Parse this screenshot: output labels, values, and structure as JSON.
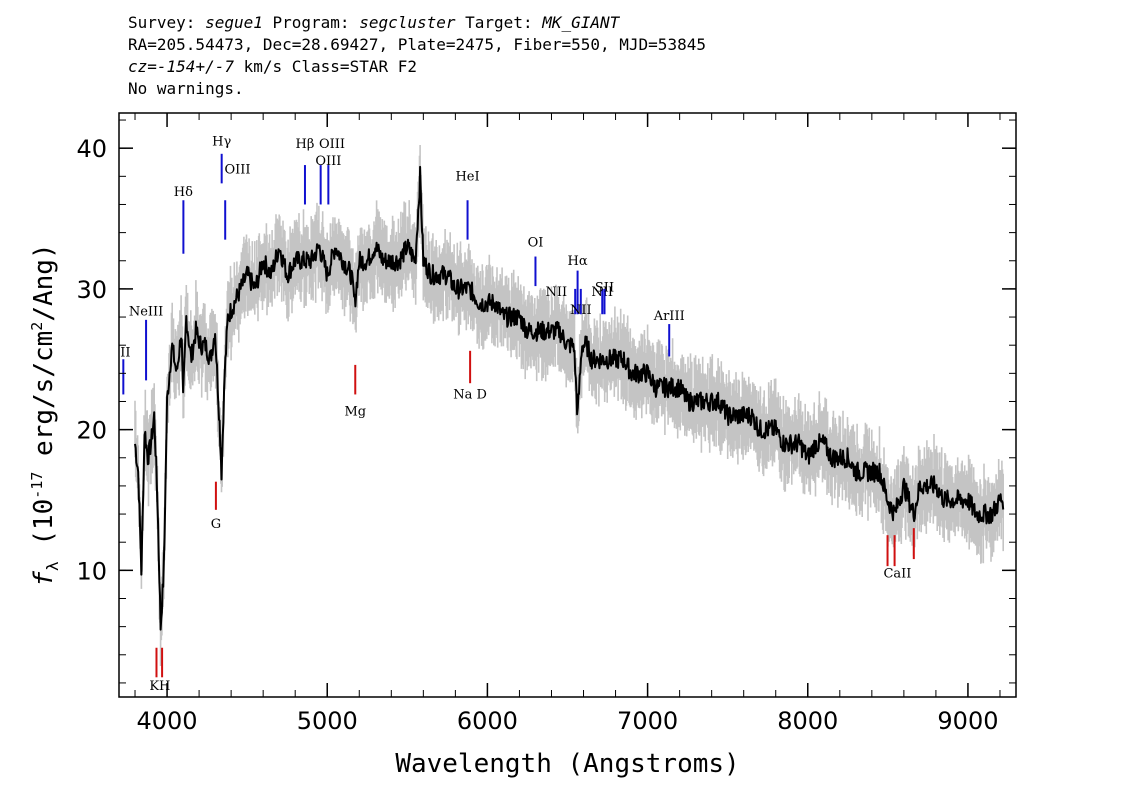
{
  "header": {
    "survey_label": "Survey: ",
    "survey": "segue1",
    "program_label": " Program: ",
    "program": "segcluster",
    "target_label": " Target: ",
    "target": "MK_GIANT",
    "line2": "RA=205.54473, Dec=28.69427, Plate=2475, Fiber=550, MJD=53845",
    "cz_label": "cz=",
    "cz": "-154+/-7",
    "cz_units": " km/s Class=STAR F2",
    "line4": "No warnings."
  },
  "chart_data": {
    "type": "line",
    "title": "",
    "xlabel": "Wavelength (Angstroms)",
    "ylabel_f": "f",
    "ylabel_sub": "λ",
    "ylabel_main": " (10",
    "ylabel_sup": "-17",
    "ylabel_rest": " erg/s/cm",
    "ylabel_sup2": "2",
    "ylabel_end": "/Ang)",
    "xlim": [
      3700,
      9300
    ],
    "ylim": [
      1,
      42.5
    ],
    "x_ticks": [
      4000,
      5000,
      6000,
      7000,
      8000,
      9000
    ],
    "x_tick_labels": [
      "4000",
      "5000",
      "6000",
      "7000",
      "8000",
      "9000"
    ],
    "y_ticks": [
      10,
      20,
      30,
      40
    ],
    "y_tick_labels": [
      "10",
      "20",
      "30",
      "40"
    ],
    "x_minor_step": 200,
    "y_minor_step": 2,
    "series": [
      {
        "color": "#000000",
        "x": [
          3800,
          3820,
          3840,
          3860,
          3880,
          3900,
          3920,
          3940,
          3960,
          3980,
          4000,
          4030,
          4060,
          4090,
          4100,
          4120,
          4150,
          4180,
          4210,
          4240,
          4270,
          4300,
          4330,
          4340,
          4360,
          4380,
          4420,
          4460,
          4500,
          4550,
          4600,
          4650,
          4700,
          4750,
          4800,
          4860,
          4900,
          4950,
          5000,
          5050,
          5100,
          5150,
          5172,
          5200,
          5250,
          5300,
          5350,
          5400,
          5450,
          5500,
          5550,
          5580,
          5600,
          5650,
          5700,
          5750,
          5800,
          5850,
          5890,
          5950,
          6000,
          6050,
          6100,
          6150,
          6200,
          6250,
          6300,
          6350,
          6400,
          6450,
          6500,
          6540,
          6563,
          6590,
          6620,
          6650,
          6700,
          6750,
          6800,
          6850,
          6900,
          6950,
          7000,
          7050,
          7100,
          7150,
          7200,
          7250,
          7300,
          7350,
          7400,
          7450,
          7500,
          7550,
          7600,
          7650,
          7700,
          7750,
          7800,
          7850,
          7900,
          7950,
          8000,
          8050,
          8100,
          8150,
          8200,
          8250,
          8300,
          8350,
          8400,
          8450,
          8498,
          8542,
          8600,
          8662,
          8700,
          8750,
          8800,
          8850,
          8900,
          8950,
          9000,
          9050,
          9100,
          9150,
          9200,
          9220
        ],
        "y": [
          19,
          17,
          10,
          20,
          18,
          19,
          21,
          15,
          6,
          10,
          22,
          26,
          24,
          27,
          22,
          28,
          25,
          27,
          26,
          26,
          25,
          27,
          20,
          17,
          24,
          28,
          29,
          30,
          31,
          30,
          32,
          31,
          33,
          31,
          32,
          32,
          32,
          33,
          31,
          33,
          32,
          31,
          29,
          32,
          32,
          33,
          32,
          32,
          32,
          33,
          32,
          38,
          32,
          31,
          31,
          31,
          30,
          30,
          30,
          29,
          29,
          29,
          28,
          28,
          28,
          27,
          27,
          27,
          27,
          27,
          26,
          26,
          21,
          26,
          26,
          25,
          25,
          25,
          25,
          25,
          24,
          24,
          24,
          23,
          23,
          23,
          23,
          22,
          22,
          22,
          22,
          22,
          21,
          21,
          21,
          21,
          20,
          20,
          20,
          19,
          19,
          19,
          18,
          19,
          19,
          18,
          18,
          18,
          17,
          17,
          17,
          17,
          15,
          14,
          16,
          14,
          16,
          16,
          16,
          15,
          15,
          15,
          15,
          14,
          14,
          14,
          15,
          15
        ]
      }
    ],
    "noise_band": {
      "color": "#c4c4c4",
      "half_width": 2.2
    },
    "lines_blue": [
      {
        "label": "II",
        "x": 3727,
        "y1": 22.5,
        "y2": 25,
        "lx": 3740,
        "ly": 25.2
      },
      {
        "label": "NeIII",
        "x": 3869,
        "y1": 23.5,
        "y2": 27.8,
        "lx": 3869,
        "ly": 28.1
      },
      {
        "label": "Hδ",
        "x": 4102,
        "y1": 32.5,
        "y2": 36.3,
        "lx": 4102,
        "ly": 36.6
      },
      {
        "label": "Hγ",
        "x": 4341,
        "y1": 37.5,
        "y2": 39.6,
        "lx": 4341,
        "ly": 40.2
      },
      {
        "label": "OIII",
        "x": 4363,
        "y1": 33.5,
        "y2": 36.3,
        "lx": 4440,
        "ly": 38.2
      },
      {
        "label": "Hβ",
        "x": 4861,
        "y1": 36,
        "y2": 38.8,
        "lx": 4861,
        "ly": 40.0
      },
      {
        "label": "OIII",
        "x": 4959,
        "y1": 36,
        "y2": 38.8,
        "lx": 5030,
        "ly": 40.0
      },
      {
        "label": "OIII",
        "x": 5007,
        "y1": 36,
        "y2": 38.8,
        "lx": 5007,
        "ly": 38.8
      },
      {
        "label": "HeI",
        "x": 5876,
        "y1": 33.5,
        "y2": 36.3,
        "lx": 5876,
        "ly": 37.7
      },
      {
        "label": "OI",
        "x": 6300,
        "y1": 30.2,
        "y2": 32.3,
        "lx": 6300,
        "ly": 33.0
      },
      {
        "label": "NII",
        "x": 6548,
        "y1": 28.2,
        "y2": 30.0,
        "lx": 6430,
        "ly": 29.5
      },
      {
        "label": "Hα",
        "x": 6563,
        "y1": 28.2,
        "y2": 31.3,
        "lx": 6563,
        "ly": 31.7
      },
      {
        "label": "NII",
        "x": 6583,
        "y1": 28.2,
        "y2": 30.0,
        "lx": 6583,
        "ly": 28.2
      },
      {
        "label": "NII",
        "x": 6717,
        "y1": 28.2,
        "y2": 30.0,
        "lx": 6717,
        "ly": 29.5
      },
      {
        "label": "SII",
        "x": 6731,
        "y1": 28.2,
        "y2": 30.0,
        "lx": 6731,
        "ly": 29.8
      },
      {
        "label": "ArIII",
        "x": 7135,
        "y1": 25.2,
        "y2": 27.5,
        "lx": 7135,
        "ly": 27.8
      }
    ],
    "lines_red": [
      {
        "label": "KH",
        "x": 3934,
        "y1": 2.4,
        "y2": 4.5,
        "lx": 3955,
        "ly": 1.5
      },
      {
        "label": "",
        "x": 3969,
        "y1": 2.4,
        "y2": 4.5,
        "lx": 3969,
        "ly": 1.5
      },
      {
        "label": "G",
        "x": 4305,
        "y1": 14.3,
        "y2": 16.3,
        "lx": 4305,
        "ly": 13.0
      },
      {
        "label": "Mg",
        "x": 5175,
        "y1": 22.5,
        "y2": 24.6,
        "lx": 5175,
        "ly": 21.0
      },
      {
        "label": "Na D",
        "x": 5892,
        "y1": 23.3,
        "y2": 25.6,
        "lx": 5892,
        "ly": 22.2
      },
      {
        "label": "CaII",
        "x": 8498,
        "y1": 10.3,
        "y2": 12.5,
        "lx": 8560,
        "ly": 9.5
      },
      {
        "label": "",
        "x": 8542,
        "y1": 10.3,
        "y2": 12.5,
        "lx": 8542,
        "ly": 9.5
      },
      {
        "label": "",
        "x": 8662,
        "y1": 10.8,
        "y2": 13.0,
        "lx": 8662,
        "ly": 9.5
      }
    ]
  },
  "colors": {
    "blue_line": "#1010d0",
    "red_line": "#d01010"
  }
}
